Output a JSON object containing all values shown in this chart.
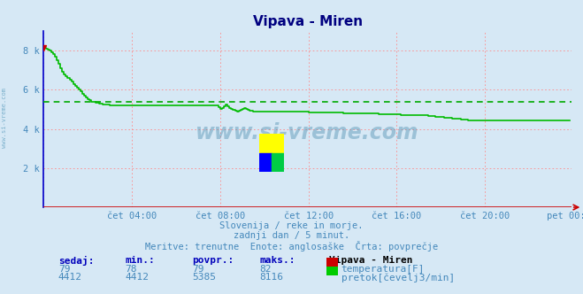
{
  "title": "Vipava - Miren",
  "title_color": "#000080",
  "bg_color": "#d6e8f5",
  "plot_bg_color": "#d6e8f5",
  "grid_color": "#ff8888",
  "left_spine_color": "#0000cc",
  "bottom_spine_color": "#cc0000",
  "text_color": "#4488bb",
  "watermark": "www.si-vreme.com",
  "xlim": [
    0,
    287
  ],
  "ylim": [
    0,
    9000
  ],
  "yticks": [
    0,
    2000,
    4000,
    6000,
    8000
  ],
  "ytick_labels": [
    "",
    "2 k",
    "4 k",
    "6 k",
    "8 k"
  ],
  "xtick_positions": [
    0,
    48,
    96,
    144,
    192,
    240,
    287
  ],
  "xtick_labels": [
    "čet 04:00",
    "čet 04:00",
    "čet 08:00",
    "čet 12:00",
    "čet 16:00",
    "čet 20:00",
    "pet 00:00"
  ],
  "xtick_labels_show": [
    "",
    "čet 04:00",
    "čet 08:00",
    "čet 12:00",
    "čet 16:00",
    "čet 20:00",
    "pet 00:00"
  ],
  "avg_line_value": 5385,
  "avg_line_color": "#00aa00",
  "line_color": "#00bb00",
  "subtitle1": "Slovenija / reke in morje.",
  "subtitle2": "zadnji dan / 5 minut.",
  "subtitle3": "Meritve: trenutne  Enote: anglosaške  Črta: povprečje",
  "table_headers": [
    "sedaj:",
    "min.:",
    "povpr.:",
    "maks.:"
  ],
  "row1_vals": [
    "79",
    "78",
    "79",
    "82"
  ],
  "row2_vals": [
    "4412",
    "4412",
    "5385",
    "8116"
  ],
  "station_name": "Vipava - Miren",
  "legend1": "temperatura[F]",
  "legend2": "pretok[čevelj3/min]",
  "logo_yellow": "#ffff00",
  "logo_blue": "#0000ff",
  "logo_green": "#00cc44",
  "flow_data_raw": [
    8116,
    8100,
    8050,
    8000,
    7900,
    7800,
    7700,
    7500,
    7300,
    7100,
    6900,
    6800,
    6700,
    6600,
    6500,
    6400,
    6300,
    6200,
    6100,
    6000,
    5900,
    5800,
    5700,
    5600,
    5500,
    5450,
    5400,
    5380,
    5350,
    5320,
    5300,
    5280,
    5260,
    5250,
    5240,
    5230,
    5220,
    5210,
    5200,
    5200,
    5200,
    5200,
    5200,
    5200,
    5200,
    5200,
    5195,
    5190,
    5185,
    5180,
    5180,
    5180,
    5180,
    5180,
    5180,
    5180,
    5180,
    5180,
    5180,
    5180,
    5180,
    5180,
    5180,
    5180,
    5180,
    5180,
    5180,
    5180,
    5180,
    5180,
    5180,
    5180,
    5180,
    5180,
    5180,
    5180,
    5180,
    5180,
    5180,
    5180,
    5180,
    5180,
    5180,
    5180,
    5180,
    5180,
    5180,
    5180,
    5180,
    5180,
    5180,
    5180,
    5180,
    5180,
    5180,
    5100,
    5020,
    5050,
    5150,
    5250,
    5150,
    5080,
    5010,
    4960,
    4910,
    4870,
    4920,
    4970,
    5020,
    5060,
    5010,
    4960,
    4910,
    4905,
    4900,
    4900,
    4900,
    4900,
    4900,
    4900,
    4900,
    4900,
    4900,
    4900,
    4900,
    4900,
    4900,
    4900,
    4900,
    4900,
    4900,
    4900,
    4900,
    4900,
    4900,
    4900,
    4900,
    4900,
    4900,
    4900,
    4900,
    4890,
    4870,
    4860,
    4855,
    4850,
    4850,
    4850,
    4850,
    4850,
    4850,
    4850,
    4850,
    4850,
    4850,
    4830,
    4825,
    4820,
    4820,
    4820,
    4820,
    4820,
    4820,
    4810,
    4805,
    4800,
    4800,
    4800,
    4800,
    4800,
    4800,
    4800,
    4800,
    4790,
    4785,
    4780,
    4780,
    4780,
    4780,
    4780,
    4780,
    4775,
    4760,
    4755,
    4750,
    4750,
    4750,
    4750,
    4750,
    4750,
    4745,
    4738,
    4731,
    4726,
    4722,
    4721,
    4720,
    4720,
    4718,
    4715,
    4712,
    4709,
    4706,
    4703,
    4700,
    4700,
    4692,
    4688,
    4684,
    4672,
    4660,
    4648,
    4636,
    4628,
    4614,
    4608,
    4604,
    4600,
    4588,
    4576,
    4562,
    4550,
    4540,
    4530,
    4520,
    4510,
    4500,
    4490,
    4480,
    4470,
    4460,
    4450,
    4440,
    4430,
    4421,
    4418,
    4414,
    4412,
    4412,
    4412,
    4412,
    4412,
    4412,
    4412,
    4412,
    4412,
    4412,
    4412,
    4412,
    4412,
    4412,
    4412,
    4412,
    4412,
    4412,
    4412,
    4412,
    4412,
    4412,
    4412,
    4412,
    4412,
    4412,
    4412,
    4412,
    4412,
    4412,
    4412,
    4412,
    4412,
    4412,
    4412,
    4412,
    4412,
    4412,
    4412,
    4412,
    4412,
    4412,
    4412,
    4412,
    4412,
    4412,
    4412,
    4412,
    4412,
    4412
  ]
}
